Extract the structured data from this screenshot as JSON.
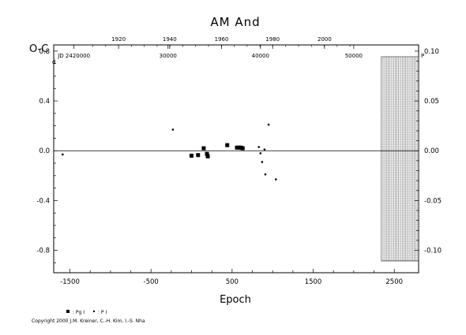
{
  "chart_data": {
    "type": "scatter",
    "title": "AM And",
    "xlabel": "Epoch",
    "ylabel": "O-C",
    "ylabel_unit": "d",
    "right_unit": "P",
    "xlim": [
      -1700,
      2800
    ],
    "ylim": [
      -0.98,
      0.85
    ],
    "right_scale_factor": 0.125,
    "bottom_ticks": [
      {
        "value": -1500,
        "label": "-1500"
      },
      {
        "value": -500,
        "label": "-500"
      },
      {
        "value": 500,
        "label": "500"
      },
      {
        "value": 1500,
        "label": "1500"
      },
      {
        "value": 2500,
        "label": "2500"
      }
    ],
    "left_ticks": [
      {
        "value": 0.8,
        "label": "0.8"
      },
      {
        "value": 0.4,
        "label": "0.4"
      },
      {
        "value": 0.0,
        "label": "0.0"
      },
      {
        "value": -0.4,
        "label": "-0.4"
      },
      {
        "value": -0.8,
        "label": "-0.8"
      }
    ],
    "right_ticks": [
      {
        "value": 0.1,
        "label": "0.10"
      },
      {
        "value": 0.05,
        "label": "0.05"
      },
      {
        "value": 0.0,
        "label": "0.00"
      },
      {
        "value": -0.05,
        "label": "-0.05"
      },
      {
        "value": -0.1,
        "label": "-0.10"
      }
    ],
    "top_year_ticks": [
      {
        "epoch": -900,
        "label": "1920"
      },
      {
        "epoch": -270,
        "label": "1940"
      },
      {
        "epoch": 370,
        "label": "1960"
      },
      {
        "epoch": 1000,
        "label": "1980"
      },
      {
        "epoch": 1640,
        "label": "2000"
      }
    ],
    "jd_ticks": [
      {
        "epoch": -1450,
        "label": "JD 2420000"
      },
      {
        "epoch": -290,
        "label": "30000"
      },
      {
        "epoch": 850,
        "label": "40000"
      },
      {
        "epoch": 2000,
        "label": "50000"
      }
    ],
    "hatched_region_x": [
      2340,
      2800
    ],
    "series": [
      {
        "name": "Pg",
        "symbol": "square",
        "points": [
          [
            -1,
            -0.04
          ],
          [
            80,
            -0.035
          ],
          [
            150,
            0.02
          ],
          [
            190,
            -0.025
          ],
          [
            200,
            -0.045
          ],
          [
            440,
            0.045
          ],
          [
            560,
            0.025
          ],
          [
            590,
            0.025
          ],
          [
            610,
            0.025
          ],
          [
            630,
            0.02
          ]
        ]
      },
      {
        "name": "P",
        "symbol": "dot",
        "points": [
          [
            -1590,
            -0.03
          ],
          [
            -230,
            0.17
          ],
          [
            830,
            0.03
          ],
          [
            850,
            -0.02
          ],
          [
            870,
            -0.09
          ],
          [
            900,
            0.01
          ],
          [
            910,
            -0.19
          ],
          [
            950,
            0.21
          ],
          [
            1040,
            -0.23
          ]
        ]
      }
    ],
    "legend": [
      {
        "symbol": "square",
        "label": ": Pg I"
      },
      {
        "symbol": "dot",
        "label": ": P I"
      }
    ]
  },
  "copyright": "Copyright 2000 J.M. Kreiner, C.-H. Kim, I.-S. Nha"
}
